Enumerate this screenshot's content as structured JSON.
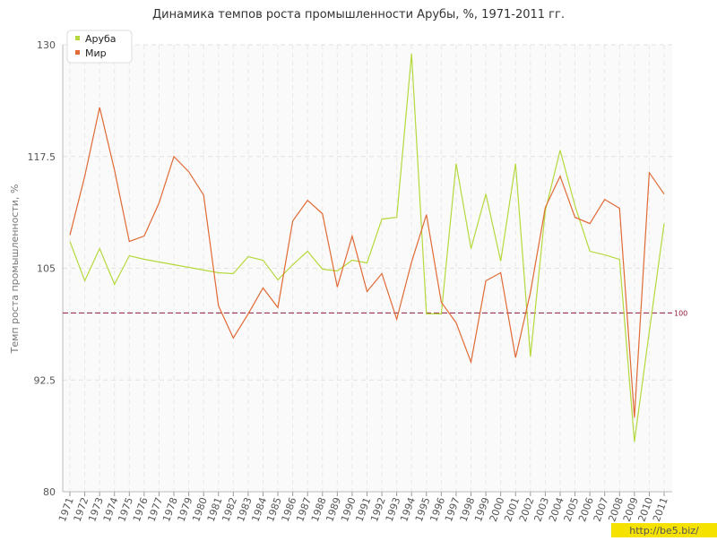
{
  "chart_data": {
    "type": "line",
    "title": "Динамика темпов роста промышленности Арубы, %, 1971-2011 гг.",
    "y_label": "Темп роста промышленности, %",
    "x": [
      1971,
      1972,
      1973,
      1974,
      1975,
      1976,
      1977,
      1978,
      1979,
      1980,
      1981,
      1982,
      1983,
      1984,
      1985,
      1986,
      1987,
      1988,
      1989,
      1990,
      1991,
      1992,
      1993,
      1994,
      1995,
      1996,
      1997,
      1998,
      1999,
      2000,
      2001,
      2002,
      2003,
      2004,
      2005,
      2006,
      2007,
      2008,
      2009,
      2010,
      2011
    ],
    "series": [
      {
        "name": "Аруба",
        "color": "#b5d93c",
        "values": [
          108.0,
          103.6,
          107.2,
          103.2,
          106.4,
          106.0,
          105.7,
          105.4,
          105.1,
          104.8,
          104.5,
          104.4,
          106.3,
          105.9,
          103.7,
          105.4,
          106.9,
          104.9,
          104.7,
          105.9,
          105.6,
          110.5,
          110.7,
          129.0,
          99.9,
          99.9,
          116.7,
          107.2,
          113.3,
          105.8,
          116.7,
          95.1,
          111.4,
          118.2,
          112.0,
          106.9,
          106.5,
          106.0,
          85.6,
          97.9,
          110.0
        ]
      },
      {
        "name": "Мир",
        "color": "#e06a35",
        "values": [
          108.7,
          115.3,
          123.0,
          116.0,
          108.0,
          108.6,
          112.3,
          117.5,
          115.8,
          113.2,
          100.8,
          97.2,
          99.9,
          102.8,
          100.6,
          110.3,
          112.6,
          111.1,
          102.9,
          108.6,
          102.4,
          104.4,
          99.3,
          105.7,
          111.0,
          101.2,
          98.9,
          94.5,
          103.6,
          104.5,
          95.0,
          102.3,
          111.8,
          115.3,
          110.7,
          110.0,
          112.7,
          111.7,
          88.3,
          115.7,
          113.3
        ]
      }
    ],
    "reference_line": 100,
    "reference_color": "#8b1a3a",
    "ylim": [
      80,
      130
    ],
    "yticks": [
      80,
      92.5,
      105,
      117.5,
      130
    ],
    "xlim": [
      1971,
      2011
    ],
    "grid": true,
    "legend": "top-left",
    "watermark": "http://be5.biz/"
  }
}
